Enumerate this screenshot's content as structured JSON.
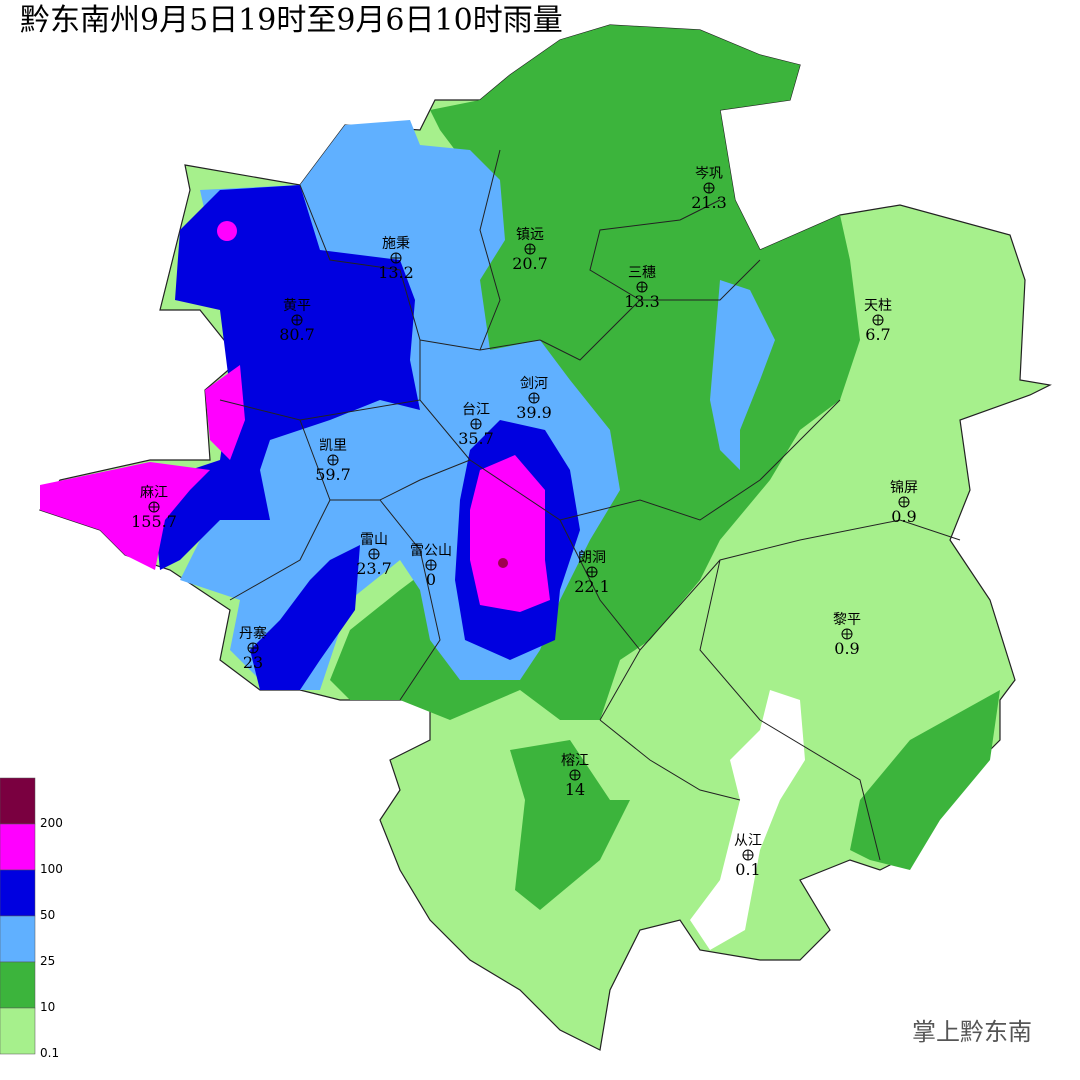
{
  "header": {
    "title": "黔东南州9月5日19时至9月6日10时雨量"
  },
  "stations": [
    {
      "name": "岑巩",
      "value": "21.3"
    },
    {
      "name": "施秉",
      "value": "13.2"
    },
    {
      "name": "镇远",
      "value": "20.7"
    },
    {
      "name": "三穗",
      "value": "13.3"
    },
    {
      "name": "天柱",
      "value": "6.7"
    },
    {
      "name": "黄平",
      "value": "80.7"
    },
    {
      "name": "剑河",
      "value": "39.9"
    },
    {
      "name": "台江",
      "value": "35.7"
    },
    {
      "name": "凯里",
      "value": "59.7"
    },
    {
      "name": "麻江",
      "value": "155.7"
    },
    {
      "name": "锦屏",
      "value": "0.9"
    },
    {
      "name": "雷山",
      "value": "23.7"
    },
    {
      "name": "雷公山",
      "value": "0"
    },
    {
      "name": "朗洞",
      "value": "22.1"
    },
    {
      "name": "丹寨",
      "value": "23"
    },
    {
      "name": "黎平",
      "value": "0.9"
    },
    {
      "name": "榕江",
      "value": "14"
    },
    {
      "name": "从江",
      "value": "0.1"
    }
  ],
  "legend": {
    "labels": [
      "200",
      "100",
      "50",
      "25",
      "10",
      "0.1"
    ]
  },
  "watermark": "掌上黔东南"
}
